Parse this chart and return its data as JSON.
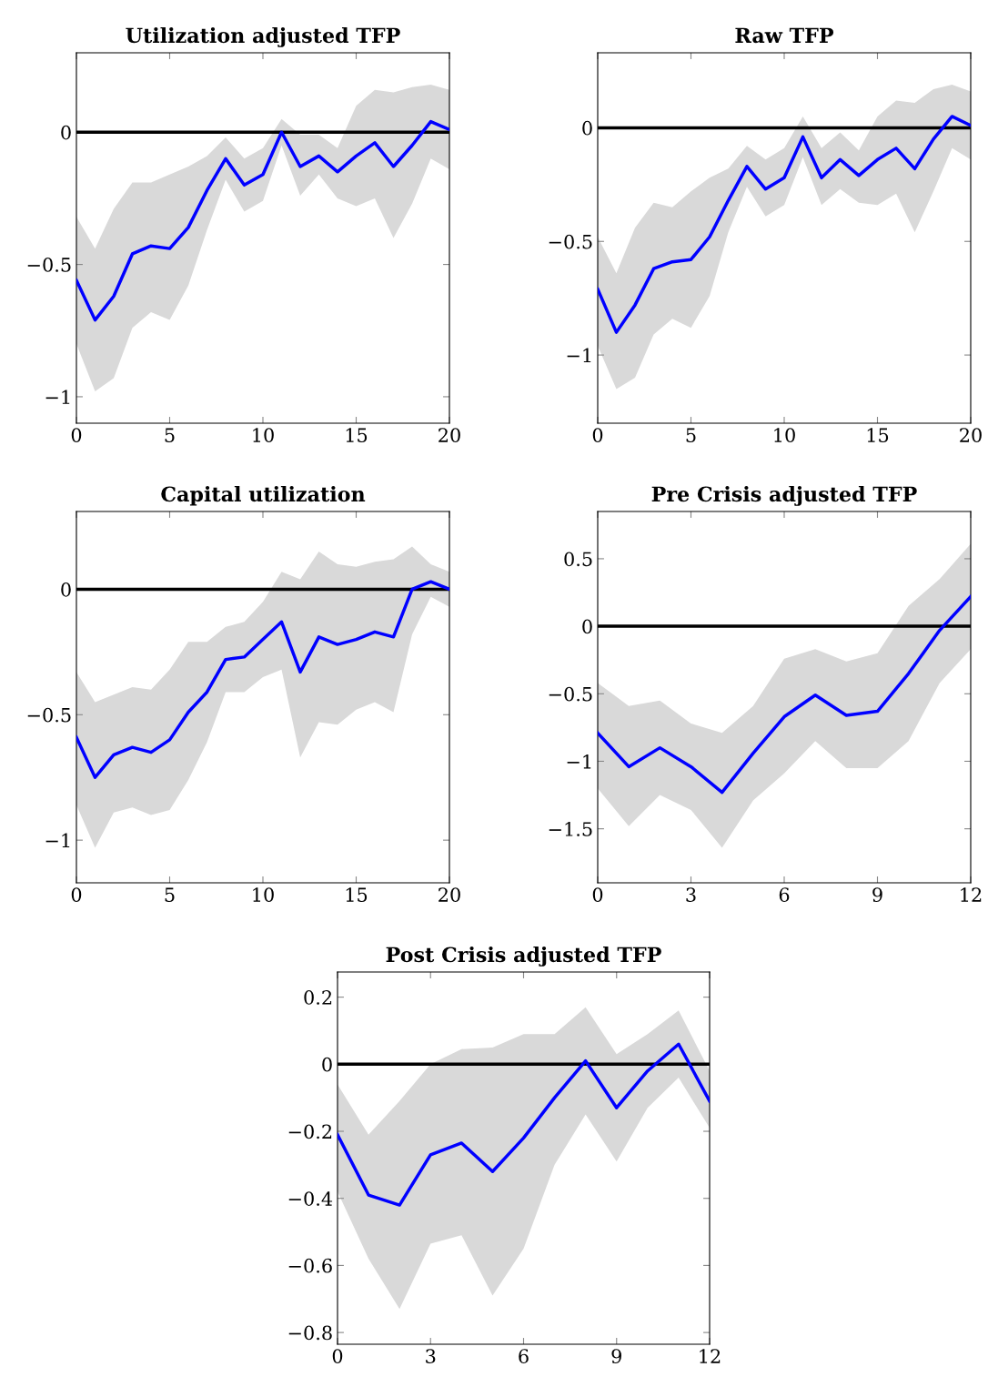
{
  "chart_data": [
    {
      "type": "line",
      "title": "Utilization adjusted TFP",
      "x": [
        0,
        1,
        2,
        3,
        4,
        5,
        6,
        7,
        8,
        9,
        10,
        11,
        12,
        13,
        14,
        15,
        16,
        17,
        18,
        19,
        20
      ],
      "xlim": [
        0,
        20
      ],
      "xticks": [
        0,
        5,
        10,
        15,
        20
      ],
      "ylim": [
        -1.1,
        0.3
      ],
      "yticks": [
        {
          "value": -1,
          "label": "−1"
        },
        {
          "value": -0.5,
          "label": "−0.5"
        },
        0
      ],
      "grid": false,
      "legend": false,
      "marker": "none",
      "line_style": "solid",
      "ref_lines": [
        {
          "axis": "y",
          "value": 0,
          "color": "#000000",
          "line_style": "solid"
        }
      ],
      "series": [
        {
          "color": "#0000ff",
          "values": [
            -0.56,
            -0.71,
            -0.62,
            -0.46,
            -0.43,
            -0.44,
            -0.36,
            -0.22,
            -0.1,
            -0.2,
            -0.16,
            0.0,
            -0.13,
            -0.09,
            -0.15,
            -0.09,
            -0.04,
            -0.13,
            -0.05,
            0.04,
            0.01
          ],
          "upper": [
            -0.32,
            -0.44,
            -0.29,
            -0.19,
            -0.19,
            -0.16,
            -0.13,
            -0.09,
            -0.02,
            -0.1,
            -0.06,
            0.05,
            -0.01,
            -0.01,
            -0.06,
            0.1,
            0.16,
            0.15,
            0.17,
            0.18,
            0.16
          ],
          "lower": [
            -0.8,
            -0.98,
            -0.93,
            -0.74,
            -0.68,
            -0.71,
            -0.58,
            -0.37,
            -0.18,
            -0.3,
            -0.26,
            -0.05,
            -0.24,
            -0.16,
            -0.25,
            -0.28,
            -0.25,
            -0.4,
            -0.27,
            -0.1,
            -0.14
          ]
        }
      ]
    },
    {
      "type": "line",
      "title": "Raw TFP",
      "x": [
        0,
        1,
        2,
        3,
        4,
        5,
        6,
        7,
        8,
        9,
        10,
        11,
        12,
        13,
        14,
        15,
        16,
        17,
        18,
        19,
        20
      ],
      "xlim": [
        0,
        20
      ],
      "xticks": [
        0,
        5,
        10,
        15,
        20
      ],
      "ylim": [
        -1.3,
        0.33
      ],
      "yticks": [
        {
          "value": -1,
          "label": "−1"
        },
        {
          "value": -0.5,
          "label": "−0.5"
        },
        0
      ],
      "grid": false,
      "legend": false,
      "marker": "none",
      "line_style": "solid",
      "ref_lines": [
        {
          "axis": "y",
          "value": 0,
          "color": "#000000",
          "line_style": "solid"
        }
      ],
      "series": [
        {
          "color": "#0000ff",
          "values": [
            -0.71,
            -0.9,
            -0.78,
            -0.62,
            -0.59,
            -0.58,
            -0.48,
            -0.32,
            -0.17,
            -0.27,
            -0.22,
            -0.04,
            -0.22,
            -0.14,
            -0.21,
            -0.14,
            -0.09,
            -0.18,
            -0.05,
            0.05,
            0.01
          ],
          "upper": [
            -0.48,
            -0.64,
            -0.44,
            -0.33,
            -0.35,
            -0.28,
            -0.22,
            -0.18,
            -0.08,
            -0.14,
            -0.09,
            0.05,
            -0.09,
            -0.02,
            -0.1,
            0.05,
            0.12,
            0.11,
            0.17,
            0.19,
            0.16
          ],
          "lower": [
            -0.96,
            -1.15,
            -1.1,
            -0.91,
            -0.84,
            -0.88,
            -0.74,
            -0.46,
            -0.26,
            -0.39,
            -0.34,
            -0.13,
            -0.34,
            -0.27,
            -0.33,
            -0.34,
            -0.29,
            -0.46,
            -0.28,
            -0.09,
            -0.14
          ]
        }
      ]
    },
    {
      "type": "line",
      "title": "Capital utilization",
      "x": [
        0,
        1,
        2,
        3,
        4,
        5,
        6,
        7,
        8,
        9,
        10,
        11,
        12,
        13,
        14,
        15,
        16,
        17,
        18,
        19,
        20
      ],
      "xlim": [
        0,
        20
      ],
      "xticks": [
        0,
        5,
        10,
        15,
        20
      ],
      "ylim": [
        -1.17,
        0.31
      ],
      "yticks": [
        {
          "value": -1,
          "label": "−1"
        },
        {
          "value": -0.5,
          "label": "−0.5"
        },
        0
      ],
      "grid": false,
      "legend": false,
      "marker": "none",
      "line_style": "solid",
      "ref_lines": [
        {
          "axis": "y",
          "value": 0,
          "color": "#000000",
          "line_style": "solid"
        }
      ],
      "series": [
        {
          "color": "#0000ff",
          "values": [
            -0.59,
            -0.75,
            -0.66,
            -0.63,
            -0.65,
            -0.6,
            -0.49,
            -0.41,
            -0.28,
            -0.27,
            -0.2,
            -0.13,
            -0.33,
            -0.19,
            -0.22,
            -0.2,
            -0.17,
            -0.19,
            0.0,
            0.03,
            0.0
          ],
          "upper": [
            -0.33,
            -0.45,
            -0.42,
            -0.39,
            -0.4,
            -0.32,
            -0.21,
            -0.21,
            -0.15,
            -0.13,
            -0.05,
            0.07,
            0.04,
            0.15,
            0.1,
            0.09,
            0.11,
            0.12,
            0.17,
            0.1,
            0.07
          ],
          "lower": [
            -0.86,
            -1.03,
            -0.89,
            -0.87,
            -0.9,
            -0.88,
            -0.76,
            -0.61,
            -0.41,
            -0.41,
            -0.35,
            -0.32,
            -0.67,
            -0.53,
            -0.54,
            -0.48,
            -0.45,
            -0.49,
            -0.18,
            -0.03,
            -0.07
          ]
        }
      ]
    },
    {
      "type": "line",
      "title": "Pre Crisis adjusted TFP",
      "x": [
        0,
        1,
        2,
        3,
        4,
        5,
        6,
        7,
        8,
        9,
        10,
        11,
        12
      ],
      "xlim": [
        0,
        12
      ],
      "xticks": [
        0,
        3,
        6,
        9,
        12
      ],
      "ylim": [
        -1.9,
        0.85
      ],
      "yticks": [
        {
          "value": -1.5,
          "label": "−1.5"
        },
        {
          "value": -1,
          "label": "−1"
        },
        {
          "value": -0.5,
          "label": "−0.5"
        },
        0,
        0.5
      ],
      "grid": false,
      "legend": false,
      "marker": "none",
      "line_style": "solid",
      "ref_lines": [
        {
          "axis": "y",
          "value": 0,
          "color": "#000000",
          "line_style": "solid"
        }
      ],
      "series": [
        {
          "color": "#0000ff",
          "values": [
            -0.79,
            -1.04,
            -0.9,
            -1.04,
            -1.23,
            -0.94,
            -0.67,
            -0.51,
            -0.66,
            -0.63,
            -0.35,
            -0.03,
            0.22
          ],
          "upper": [
            -0.42,
            -0.59,
            -0.55,
            -0.72,
            -0.79,
            -0.59,
            -0.24,
            -0.17,
            -0.26,
            -0.2,
            0.15,
            0.35,
            0.61
          ],
          "lower": [
            -1.2,
            -1.48,
            -1.25,
            -1.36,
            -1.64,
            -1.29,
            -1.09,
            -0.85,
            -1.05,
            -1.05,
            -0.85,
            -0.42,
            -0.17
          ]
        }
      ]
    },
    {
      "type": "line",
      "title": "Post Crisis adjusted TFP",
      "x": [
        0,
        1,
        2,
        3,
        4,
        5,
        6,
        7,
        8,
        9,
        10,
        11,
        12
      ],
      "xlim": [
        0,
        12
      ],
      "xticks": [
        0,
        3,
        6,
        9,
        12
      ],
      "ylim": [
        -0.835,
        0.275
      ],
      "yticks": [
        {
          "value": -0.8,
          "label": "−0.8"
        },
        {
          "value": -0.6,
          "label": "−0.6"
        },
        {
          "value": -0.4,
          "label": "−0.4"
        },
        {
          "value": -0.2,
          "label": "−0.2"
        },
        0,
        0.2
      ],
      "grid": false,
      "legend": false,
      "marker": "none",
      "line_style": "solid",
      "ref_lines": [
        {
          "axis": "y",
          "value": 0,
          "color": "#000000",
          "line_style": "solid"
        }
      ],
      "series": [
        {
          "color": "#0000ff",
          "values": [
            -0.21,
            -0.39,
            -0.42,
            -0.27,
            -0.235,
            -0.32,
            -0.22,
            -0.1,
            0.01,
            -0.13,
            -0.02,
            0.06,
            -0.11
          ],
          "upper": [
            -0.06,
            -0.21,
            -0.11,
            0.0,
            0.045,
            0.05,
            0.09,
            0.09,
            0.17,
            0.03,
            0.09,
            0.16,
            -0.02
          ],
          "lower": [
            -0.38,
            -0.58,
            -0.73,
            -0.535,
            -0.51,
            -0.69,
            -0.55,
            -0.3,
            -0.15,
            -0.29,
            -0.13,
            -0.04,
            -0.19
          ]
        }
      ]
    }
  ]
}
